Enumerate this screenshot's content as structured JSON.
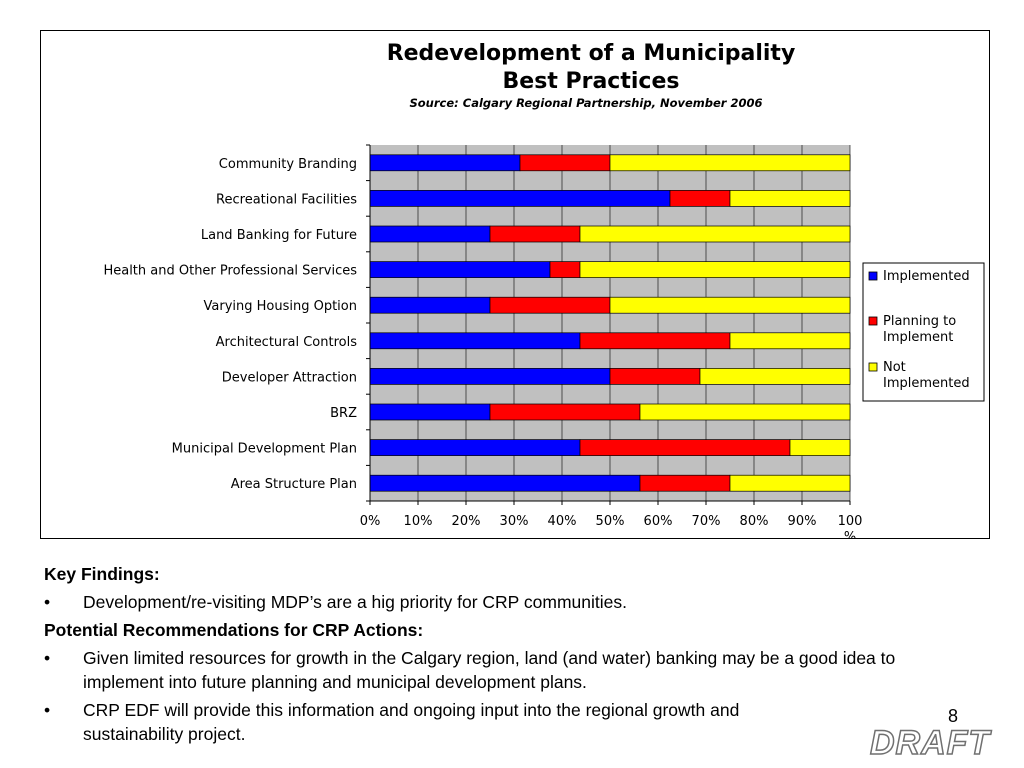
{
  "chart_data": {
    "type": "bar",
    "orientation": "horizontal",
    "stacked": "percent",
    "title_line1": "Redevelopment of a Municipality",
    "title_line2": "Best Practices",
    "subtitle": "Source: Calgary Regional Partnership, November 2006",
    "categories": [
      "Community Branding",
      "Recreational Facilities",
      "Land Banking for Future",
      "Health and Other Professional Services",
      "Varying Housing Option",
      "Architectural Controls",
      "Developer Attraction",
      "BRZ",
      "Municipal Development Plan",
      "Area Structure Plan"
    ],
    "series": [
      {
        "name": "Implemented",
        "color": "#0000ff",
        "values": [
          31.25,
          62.5,
          25,
          37.5,
          25,
          43.75,
          50,
          25,
          43.75,
          56.25
        ]
      },
      {
        "name": "Planning to Implement",
        "legend_lines": [
          "Planning to",
          "Implement"
        ],
        "color": "#ff0000",
        "values": [
          18.75,
          12.5,
          18.75,
          6.25,
          25,
          31.25,
          18.75,
          31.25,
          43.75,
          18.75
        ]
      },
      {
        "name": "Not Implemented",
        "legend_lines": [
          "Not",
          "Implemented"
        ],
        "color": "#ffff00",
        "values": [
          50,
          25,
          56.25,
          56.25,
          50,
          25,
          31.25,
          43.75,
          12.5,
          25
        ]
      }
    ],
    "x_ticks": [
      "0%",
      "10%",
      "20%",
      "30%",
      "40%",
      "50%",
      "60%",
      "70%",
      "80%",
      "90%",
      "100%"
    ],
    "xlim": [
      0,
      100
    ],
    "plot_background": "#c0c0c0",
    "legend_position": "right"
  },
  "notes": {
    "key_findings_heading": "Key Findings:",
    "key_findings": [
      "Development/re-visiting MDP’s are a hig priority for CRP communities."
    ],
    "recommendations_heading": "Potential Recommendations for CRP Actions:",
    "recommendations": [
      "Given limited resources for growth in the Calgary region, land (and water) banking may be a good idea to implement into future planning and municipal development plans.",
      "CRP EDF will provide this information and ongoing input into the regional growth and sustainability project."
    ]
  },
  "page_number": "8",
  "watermark": "DRAFT"
}
